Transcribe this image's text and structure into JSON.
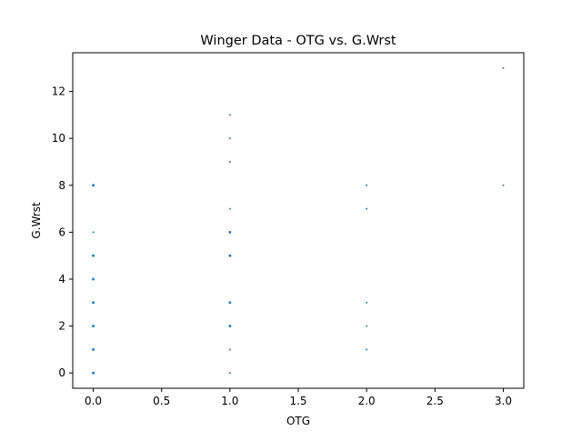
{
  "chart_data": {
    "type": "scatter",
    "title": "Winger Data - OTG vs. G.Wrst",
    "xlabel": "OTG",
    "ylabel": "G.Wrst",
    "xlim": [
      -0.15,
      3.15
    ],
    "ylim": [
      -0.65,
      13.65
    ],
    "xticks": [
      0.0,
      0.5,
      1.0,
      1.5,
      2.0,
      2.5,
      3.0
    ],
    "xtick_labels": [
      "0.0",
      "0.5",
      "1.0",
      "1.5",
      "2.0",
      "2.5",
      "3.0"
    ],
    "yticks": [
      0,
      2,
      4,
      6,
      8,
      10,
      12
    ],
    "ytick_labels": [
      "0",
      "2",
      "4",
      "6",
      "8",
      "10",
      "12"
    ],
    "grid": false,
    "marker_color": "#1f77b4",
    "series": [
      {
        "points": [
          [
            0,
            0
          ],
          [
            0,
            1
          ],
          [
            0,
            2
          ],
          [
            0,
            3
          ],
          [
            0,
            4
          ],
          [
            0,
            5
          ],
          [
            0,
            6
          ],
          [
            0,
            8
          ],
          [
            1,
            0
          ],
          [
            1,
            1
          ],
          [
            1,
            2
          ],
          [
            1,
            3
          ],
          [
            1,
            5
          ],
          [
            1,
            6
          ],
          [
            1,
            7
          ],
          [
            1,
            9
          ],
          [
            1,
            10
          ],
          [
            1,
            11
          ],
          [
            2,
            1
          ],
          [
            2,
            2
          ],
          [
            2,
            3
          ],
          [
            2,
            7
          ],
          [
            2,
            8
          ],
          [
            3,
            8
          ],
          [
            3,
            13
          ]
        ],
        "emphasized_points": [
          [
            0,
            0
          ],
          [
            0,
            1
          ],
          [
            0,
            2
          ],
          [
            0,
            3
          ],
          [
            0,
            4
          ],
          [
            0,
            5
          ],
          [
            0,
            8
          ],
          [
            1,
            2
          ],
          [
            1,
            3
          ],
          [
            1,
            5
          ],
          [
            1,
            6
          ]
        ]
      }
    ]
  }
}
